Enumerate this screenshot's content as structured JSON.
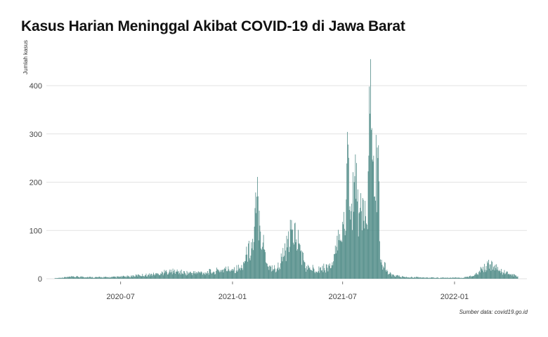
{
  "chart_data": {
    "type": "bar",
    "title": "Kasus Harian Meninggal Akibat COVID-19 di Jawa Barat",
    "ylabel": "Jumlah kasus",
    "xlabel": "",
    "caption": "Sumber data: covid19.go.id",
    "bar_color": "#4e8a86",
    "grid": true,
    "ylim": [
      0,
      400
    ],
    "y_ticks": [
      0,
      100,
      200,
      300,
      400
    ],
    "x_range": [
      "2020-03-01",
      "2022-04-30"
    ],
    "x_ticks": [
      "2020-07",
      "2021-01",
      "2021-07",
      "2022-01"
    ],
    "series": [
      {
        "values": [
          [
            "2020-03-15",
            1
          ],
          [
            "2020-04-01",
            3
          ],
          [
            "2020-04-15",
            4
          ],
          [
            "2020-05-01",
            4
          ],
          [
            "2020-05-15",
            3
          ],
          [
            "2020-06-01",
            3
          ],
          [
            "2020-06-15",
            3
          ],
          [
            "2020-07-01",
            4
          ],
          [
            "2020-07-15",
            5
          ],
          [
            "2020-08-01",
            7
          ],
          [
            "2020-08-15",
            8
          ],
          [
            "2020-09-01",
            10
          ],
          [
            "2020-09-15",
            14
          ],
          [
            "2020-10-01",
            15
          ],
          [
            "2020-10-15",
            12
          ],
          [
            "2020-11-01",
            12
          ],
          [
            "2020-11-15",
            13
          ],
          [
            "2020-12-01",
            15
          ],
          [
            "2020-12-15",
            18
          ],
          [
            "2021-01-01",
            20
          ],
          [
            "2021-01-15",
            22
          ],
          [
            "2021-01-25",
            50
          ],
          [
            "2021-02-05",
            76
          ],
          [
            "2021-02-10",
            170
          ],
          [
            "2021-02-15",
            110
          ],
          [
            "2021-02-20",
            75
          ],
          [
            "2021-03-01",
            25
          ],
          [
            "2021-03-15",
            20
          ],
          [
            "2021-04-01",
            65
          ],
          [
            "2021-04-10",
            102
          ],
          [
            "2021-04-20",
            73
          ],
          [
            "2021-05-01",
            22
          ],
          [
            "2021-05-15",
            20
          ],
          [
            "2021-06-01",
            22
          ],
          [
            "2021-06-15",
            28
          ],
          [
            "2021-06-25",
            80
          ],
          [
            "2021-07-01",
            118
          ],
          [
            "2021-07-05",
            90
          ],
          [
            "2021-07-10",
            278
          ],
          [
            "2021-07-15",
            140
          ],
          [
            "2021-07-20",
            200
          ],
          [
            "2021-07-25",
            160
          ],
          [
            "2021-08-01",
            140
          ],
          [
            "2021-08-05",
            120
          ],
          [
            "2021-08-10",
            112
          ],
          [
            "2021-08-15",
            342
          ],
          [
            "2021-08-18",
            312
          ],
          [
            "2021-08-22",
            170
          ],
          [
            "2021-08-28",
            250
          ],
          [
            "2021-09-01",
            40
          ],
          [
            "2021-09-15",
            10
          ],
          [
            "2021-10-01",
            5
          ],
          [
            "2021-10-15",
            3
          ],
          [
            "2021-11-01",
            3
          ],
          [
            "2021-11-15",
            2
          ],
          [
            "2021-12-01",
            2
          ],
          [
            "2021-12-15",
            2
          ],
          [
            "2022-01-01",
            2
          ],
          [
            "2022-01-15",
            2
          ],
          [
            "2022-02-01",
            6
          ],
          [
            "2022-02-15",
            20
          ],
          [
            "2022-03-01",
            30
          ],
          [
            "2022-03-10",
            22
          ],
          [
            "2022-03-20",
            14
          ],
          [
            "2022-04-01",
            10
          ],
          [
            "2022-04-15",
            5
          ]
        ]
      }
    ]
  }
}
